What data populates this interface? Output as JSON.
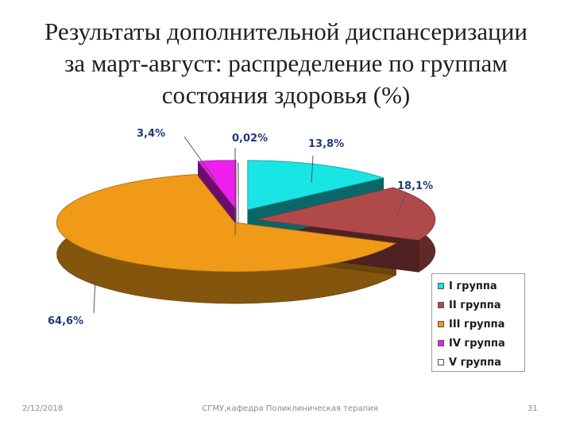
{
  "slide": {
    "title_lines": [
      "Результаты дополнительной диспансеризации",
      "за март-август: распределение по группам",
      "состояния здоровья (%)"
    ],
    "footer": {
      "date": "2/12/2018",
      "center": "СГМУ,кафедра Поликлиническая терапия",
      "page": "31"
    }
  },
  "chart_data": {
    "type": "pie",
    "title": "",
    "series": [
      {
        "categories": [
          "I группа",
          "II группа",
          "III группа",
          "IV группа",
          "V группа"
        ],
        "values": [
          13.8,
          18.1,
          64.6,
          3.4,
          0.02
        ],
        "labels": [
          "13,8%",
          "18,1%",
          "64,6%",
          "3,4%",
          "0,02%"
        ],
        "colors": [
          "#19e5e5",
          "#b04a4a",
          "#f09a18",
          "#ee1fee",
          "#ffffff"
        ]
      }
    ],
    "legend_position": "bottom-right",
    "style": "3d-exploded"
  }
}
